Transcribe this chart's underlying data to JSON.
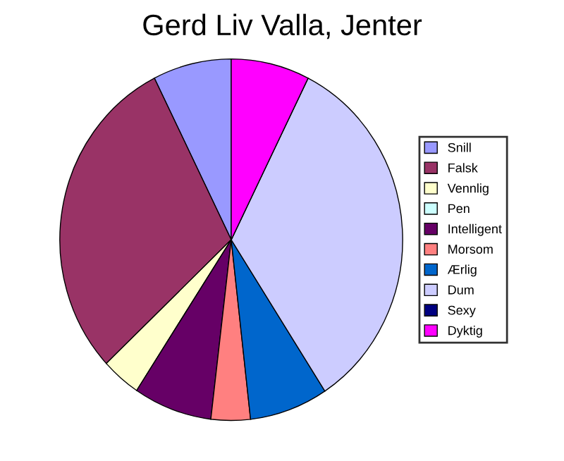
{
  "chart_data": {
    "type": "pie",
    "title": "Gerd Liv Valla, Jenter",
    "categories": [
      "Snill",
      "Falsk",
      "Vennlig",
      "Pen",
      "Intelligent",
      "Morsom",
      "Ærlig",
      "Dum",
      "Sexy",
      "Dyktig"
    ],
    "values": [
      7.4,
      29.6,
      3.7,
      0,
      7.4,
      3.7,
      7.4,
      33.4,
      0,
      7.4
    ],
    "colors": [
      "#9999ff",
      "#993366",
      "#ffffcc",
      "#ccffff",
      "#660066",
      "#ff8080",
      "#0066cc",
      "#ccccff",
      "#000080",
      "#ff00ff"
    ],
    "legend": "right"
  }
}
